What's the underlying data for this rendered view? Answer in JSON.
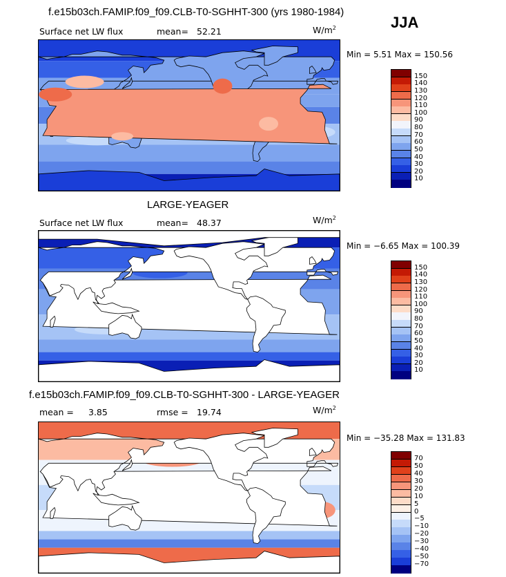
{
  "header": {
    "season": "JJA"
  },
  "chart_data": [
    {
      "type": "heatmap",
      "title": "f.e15b03ch.FAMIP.f09_f09.CLB-T0-SGHHT-300 (yrs 1980-1984)",
      "variable": "Surface net LW flux",
      "mean_label": "mean=",
      "mean": "52.21",
      "units": "W/m",
      "units_exp": "2",
      "min_max_text": "Min =    5.51 Max = 150.56",
      "min": 5.51,
      "max": 150.56,
      "colorbar_levels": [
        "150",
        "140",
        "130",
        "120",
        "110",
        "100",
        "90",
        "80",
        "70",
        "60",
        "50",
        "40",
        "30",
        "20",
        "10"
      ],
      "colors": [
        "#800000",
        "#c41a05",
        "#e0411b",
        "#ee6b4a",
        "#f7957a",
        "#fcbba2",
        "#fddcc8",
        "#f2f4fb",
        "#c6dbfa",
        "#a5c3f5",
        "#7ea4ee",
        "#5a83e7",
        "#3560e6",
        "#1a3ed8",
        "#0a1fb5",
        "#000080"
      ]
    },
    {
      "type": "heatmap",
      "title": "LARGE-YEAGER",
      "variable": "Surface net LW flux",
      "mean_label": "mean=",
      "mean": "48.37",
      "units": "W/m",
      "units_exp": "2",
      "min_max_text": "Min =  −6.65 Max = 100.39",
      "min": -6.65,
      "max": 100.39,
      "colorbar_levels": [
        "150",
        "140",
        "130",
        "120",
        "110",
        "100",
        "90",
        "80",
        "70",
        "60",
        "50",
        "40",
        "30",
        "20",
        "10"
      ],
      "colors": [
        "#800000",
        "#c41a05",
        "#e0411b",
        "#ee6b4a",
        "#f7957a",
        "#fcbba2",
        "#fddcc8",
        "#f2f4fb",
        "#c6dbfa",
        "#a5c3f5",
        "#7ea4ee",
        "#5a83e7",
        "#3560e6",
        "#1a3ed8",
        "#0a1fb5",
        "#000080"
      ]
    },
    {
      "type": "heatmap",
      "title": "f.e15b03ch.FAMIP.f09_f09.CLB-T0-SGHHT-300 - LARGE-YEAGER",
      "mean_label": "mean =",
      "mean": "3.85",
      "rmse_label": "rmse =",
      "rmse": "19.74",
      "units": "W/m",
      "units_exp": "2",
      "min_max_text": "Min = −35.28 Max = 131.83",
      "min": -35.28,
      "max": 131.83,
      "colorbar_levels": [
        "70",
        "50",
        "40",
        "30",
        "20",
        "10",
        "5",
        "0",
        "−5",
        "−10",
        "−20",
        "−30",
        "−40",
        "−50",
        "−70"
      ],
      "colors": [
        "#800000",
        "#c41a05",
        "#e0411b",
        "#ee6b4a",
        "#f7957a",
        "#fcbba2",
        "#fddcc8",
        "#fdf0e6",
        "#eef4fd",
        "#c6dbfa",
        "#a5c3f5",
        "#7ea4ee",
        "#5a83e7",
        "#3560e6",
        "#1a3ed8",
        "#000080"
      ]
    }
  ]
}
